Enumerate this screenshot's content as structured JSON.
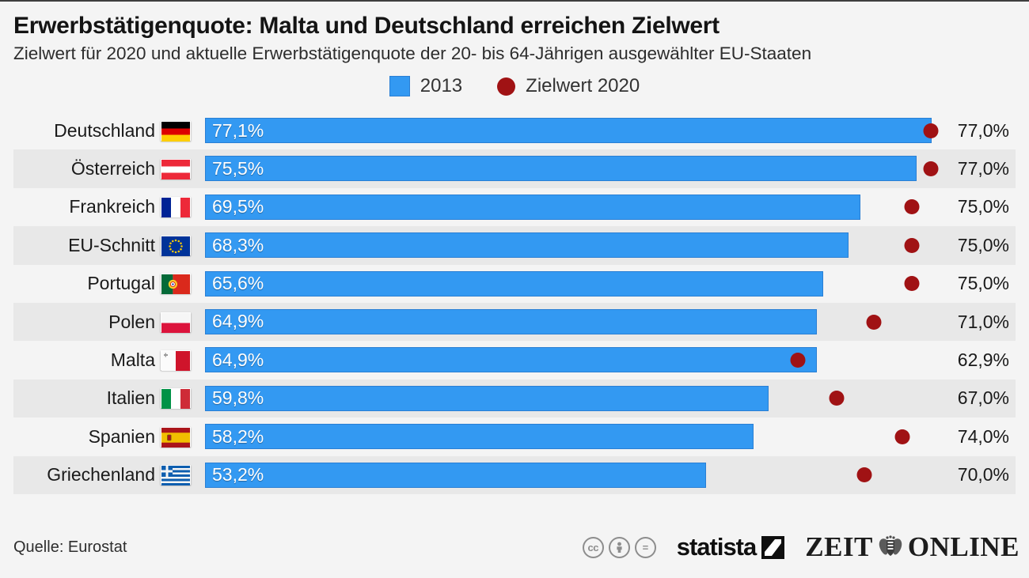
{
  "header": {
    "title": "Erwerbstätigenquote: Malta und Deutschland erreichen Zielwert",
    "subtitle": "Zielwert für 2020 und aktuelle Erwerbstätigenquote der 20- bis 64-Jährigen ausgewählter EU-Staaten"
  },
  "legend": {
    "bar_label": "2013",
    "dot_label": "Zielwert 2020"
  },
  "chart_data": {
    "type": "bar",
    "orientation": "horizontal",
    "xlim": [
      0,
      86
    ],
    "grid": false,
    "legend_position": "top-center",
    "zebra_striping": true,
    "categories": [
      "Deutschland",
      "Österreich",
      "Frankreich",
      "EU-Schnitt",
      "Portugal",
      "Polen",
      "Malta",
      "Italien",
      "Spanien",
      "Griechenland"
    ],
    "flags": [
      "de",
      "at",
      "fr",
      "eu",
      "pt",
      "pl",
      "mt",
      "it",
      "es",
      "gr"
    ],
    "series": [
      {
        "name": "2013",
        "mark": "bar",
        "color": "#3399f2",
        "values": [
          77.1,
          75.5,
          69.5,
          68.3,
          65.6,
          64.9,
          64.9,
          59.8,
          58.2,
          53.2
        ],
        "labels": [
          "77,1%",
          "75,5%",
          "69,5%",
          "68,3%",
          "65,6%",
          "64,9%",
          "64,9%",
          "59,8%",
          "58,2%",
          "53,2%"
        ]
      },
      {
        "name": "Zielwert 2020",
        "mark": "point",
        "color": "#a01214",
        "values": [
          77.0,
          77.0,
          75.0,
          75.0,
          75.0,
          71.0,
          62.9,
          67.0,
          74.0,
          70.0
        ],
        "labels": [
          "77,0%",
          "77,0%",
          "75,0%",
          "75,0%",
          "75,0%",
          "71,0%",
          "62,9%",
          "67,0%",
          "74,0%",
          "70,0%"
        ]
      }
    ]
  },
  "footer": {
    "source": "Quelle: Eurostat",
    "cc_badges": [
      "cc",
      "by",
      "nd"
    ],
    "statista_wordmark": "statista",
    "zeit_left": "ZEIT",
    "zeit_right": "ONLINE"
  },
  "colors": {
    "bar": "#3399f2",
    "bar_border": "#2a7fd4",
    "dot": "#a01214",
    "stripe": "#e8e8e8",
    "background": "#f4f4f4"
  }
}
